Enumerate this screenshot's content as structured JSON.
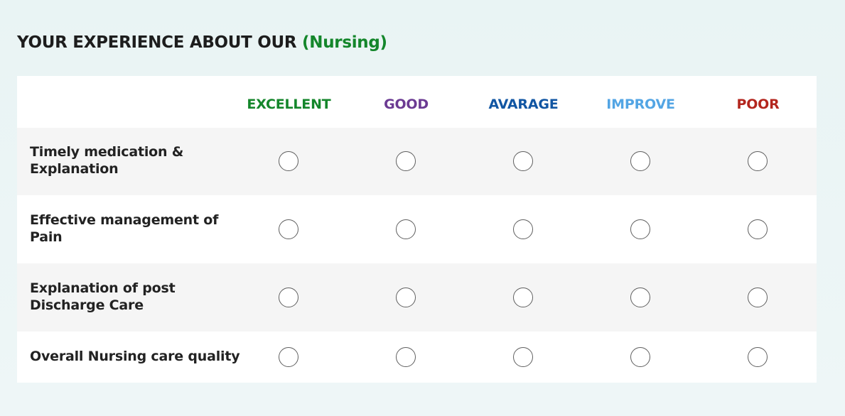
{
  "page": {
    "title_prefix": "YOUR EXPERIENCE ABOUT OUR",
    "title_highlight": "(Nursing)"
  },
  "columns": [
    {
      "label": "EXCELLENT",
      "color": "#14862b"
    },
    {
      "label": "GOOD",
      "color": "#6b3a92"
    },
    {
      "label": "AVARAGE",
      "color": "#1156a3"
    },
    {
      "label": "IMPROVE",
      "color": "#53a5e4"
    },
    {
      "label": "POOR",
      "color": "#b3261e"
    }
  ],
  "rows": [
    {
      "label": "Timely medication & Explanation"
    },
    {
      "label": "Effective management of Pain"
    },
    {
      "label": "Explanation of post Discharge Care"
    },
    {
      "label": "Overall Nursing care quality"
    }
  ]
}
